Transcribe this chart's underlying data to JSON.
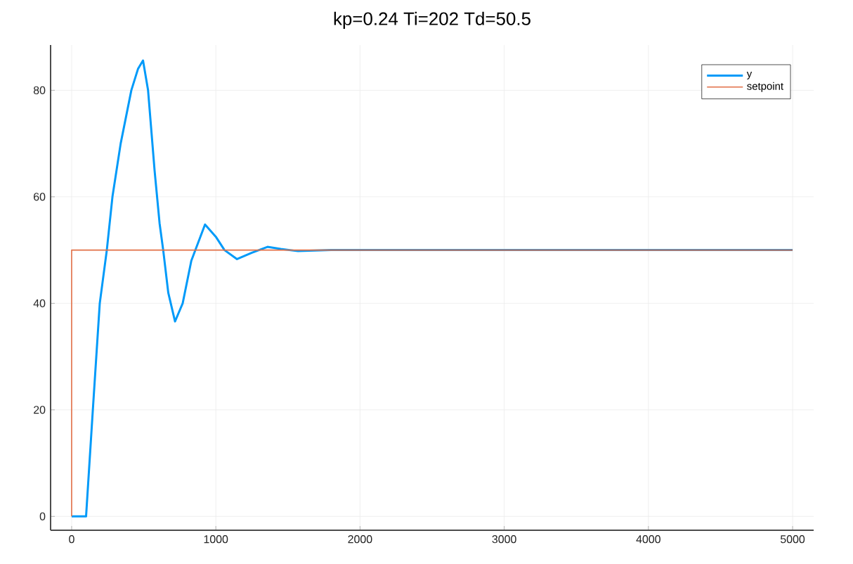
{
  "chart_data": {
    "type": "line",
    "title": "kp=0.24 Ti=202 Td=50.5",
    "series": [
      {
        "name": "y",
        "color": "#009af9",
        "x": [
          0,
          100,
          147,
          195,
          244,
          283,
          340,
          414,
          460,
          495,
          530,
          575,
          610,
          635,
          670,
          717,
          770,
          830,
          925,
          1000,
          1060,
          1147,
          1250,
          1358,
          1450,
          1570,
          1800,
          5000
        ],
        "values": [
          0,
          0,
          20,
          40,
          50,
          60,
          70,
          80,
          84,
          85.6,
          80,
          65,
          55,
          50,
          42,
          36.6,
          40,
          48,
          54.8,
          52.5,
          50,
          48.3,
          49.5,
          50.6,
          50.2,
          49.8,
          50,
          50
        ]
      },
      {
        "name": "setpoint",
        "color": "#e26f46",
        "x": [
          0,
          0,
          5000
        ],
        "values": [
          0,
          50,
          50
        ]
      }
    ],
    "xlim": [
      -146,
      5146
    ],
    "ylim": [
      -2.6,
      88.5
    ],
    "xticks": [
      0,
      1000,
      2000,
      3000,
      4000,
      5000
    ],
    "yticks": [
      0,
      20,
      40,
      60,
      80
    ],
    "grid": true,
    "legend": "top right"
  }
}
